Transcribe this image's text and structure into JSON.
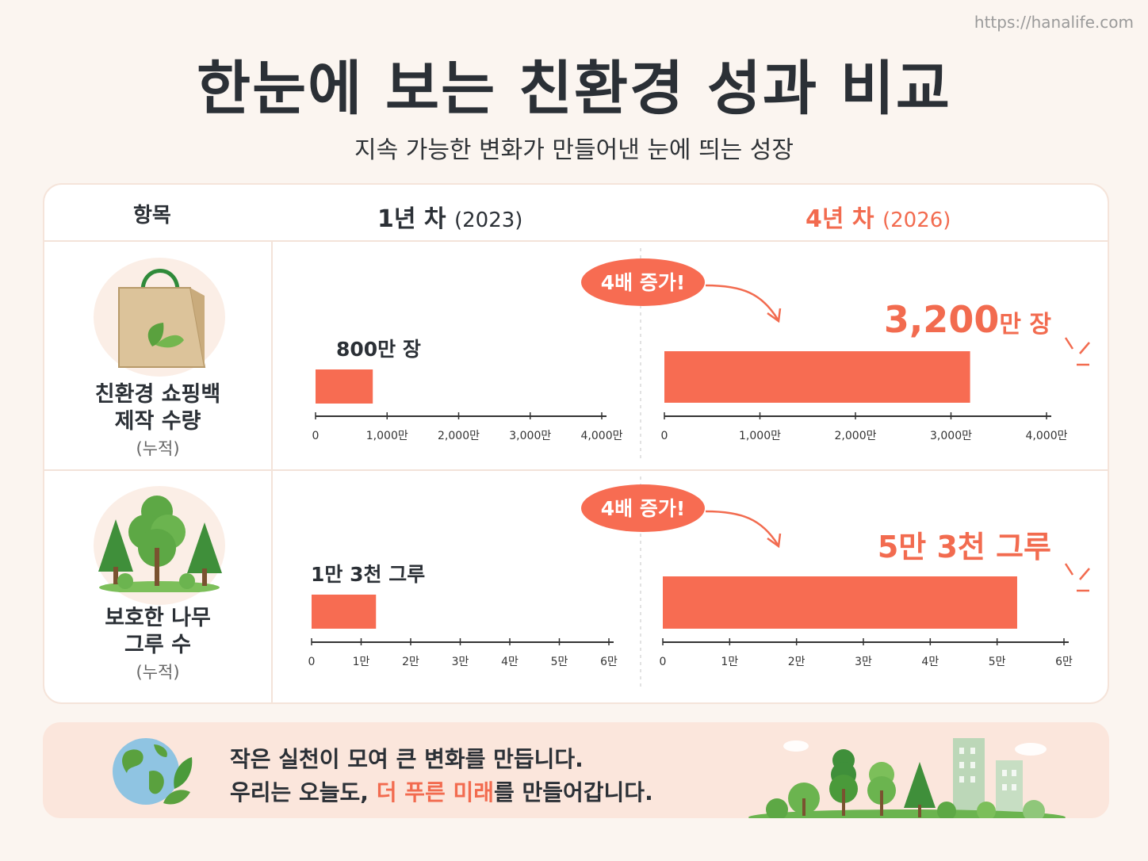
{
  "url": "https://hanalife.com",
  "title": "한눈에 보는 친환경 성과 비교",
  "subtitle": "지속 가능한 변화가 만들어낸 눈에 띄는 성장",
  "table": {
    "col_item": "항목",
    "col_year1": "1년 차",
    "col_year1_paren": "(2023)",
    "col_year4": "4년 차",
    "col_year4_paren": "(2026)"
  },
  "rows": [
    {
      "label_line1": "친환경 쇼핑백",
      "label_line2": "제작 수량",
      "label_note": "(누적)",
      "icon": "shopping-bag-icon",
      "badge": "4배 증가!",
      "year1_label": "800만 장",
      "year4_value_text": "3,200",
      "year4_unit_text": "만 장"
    },
    {
      "label_line1": "보호한 나무",
      "label_line2": "그루 수",
      "label_note": "(누적)",
      "icon": "trees-icon",
      "badge": "4배 증가!",
      "year1_label": "1만 3천 그루",
      "year4_value_text": "5만 3천 그루",
      "year4_unit_text": ""
    }
  ],
  "footer": {
    "line1": "작은 실천이 모여 큰 변화를 만듭니다.",
    "line2_pre": "우리는 오늘도, ",
    "line2_highlight": "더 푸른 미래",
    "line2_post": "를 만들어갑니다.",
    "icon_left": "globe-leaf-icon",
    "icon_right": "forest-city-icon"
  },
  "colors": {
    "accent": "#f26b4f",
    "bar": "#f76c52",
    "green": "#4a9a3a"
  },
  "chart_data": [
    {
      "type": "bar",
      "title": "친환경 쇼핑백 제작 수량 (누적)",
      "categories": [
        "1년 차 (2023)",
        "4년 차 (2026)"
      ],
      "values": [
        800,
        3200
      ],
      "unit": "만 장",
      "xlim": [
        0,
        4000
      ],
      "ticks": [
        "0",
        "1,000만",
        "2,000만",
        "3,000만",
        "4,000만"
      ],
      "tick_values": [
        0,
        1000,
        2000,
        3000,
        4000
      ]
    },
    {
      "type": "bar",
      "title": "보호한 나무 그루 수 (누적)",
      "categories": [
        "1년 차 (2023)",
        "4년 차 (2026)"
      ],
      "values": [
        1.3,
        5.3
      ],
      "unit": "만 그루",
      "xlim": [
        0,
        6
      ],
      "ticks": [
        "0",
        "1만",
        "2만",
        "3만",
        "4만",
        "5만",
        "6만"
      ],
      "tick_values": [
        0,
        1,
        2,
        3,
        4,
        5,
        6
      ]
    }
  ]
}
